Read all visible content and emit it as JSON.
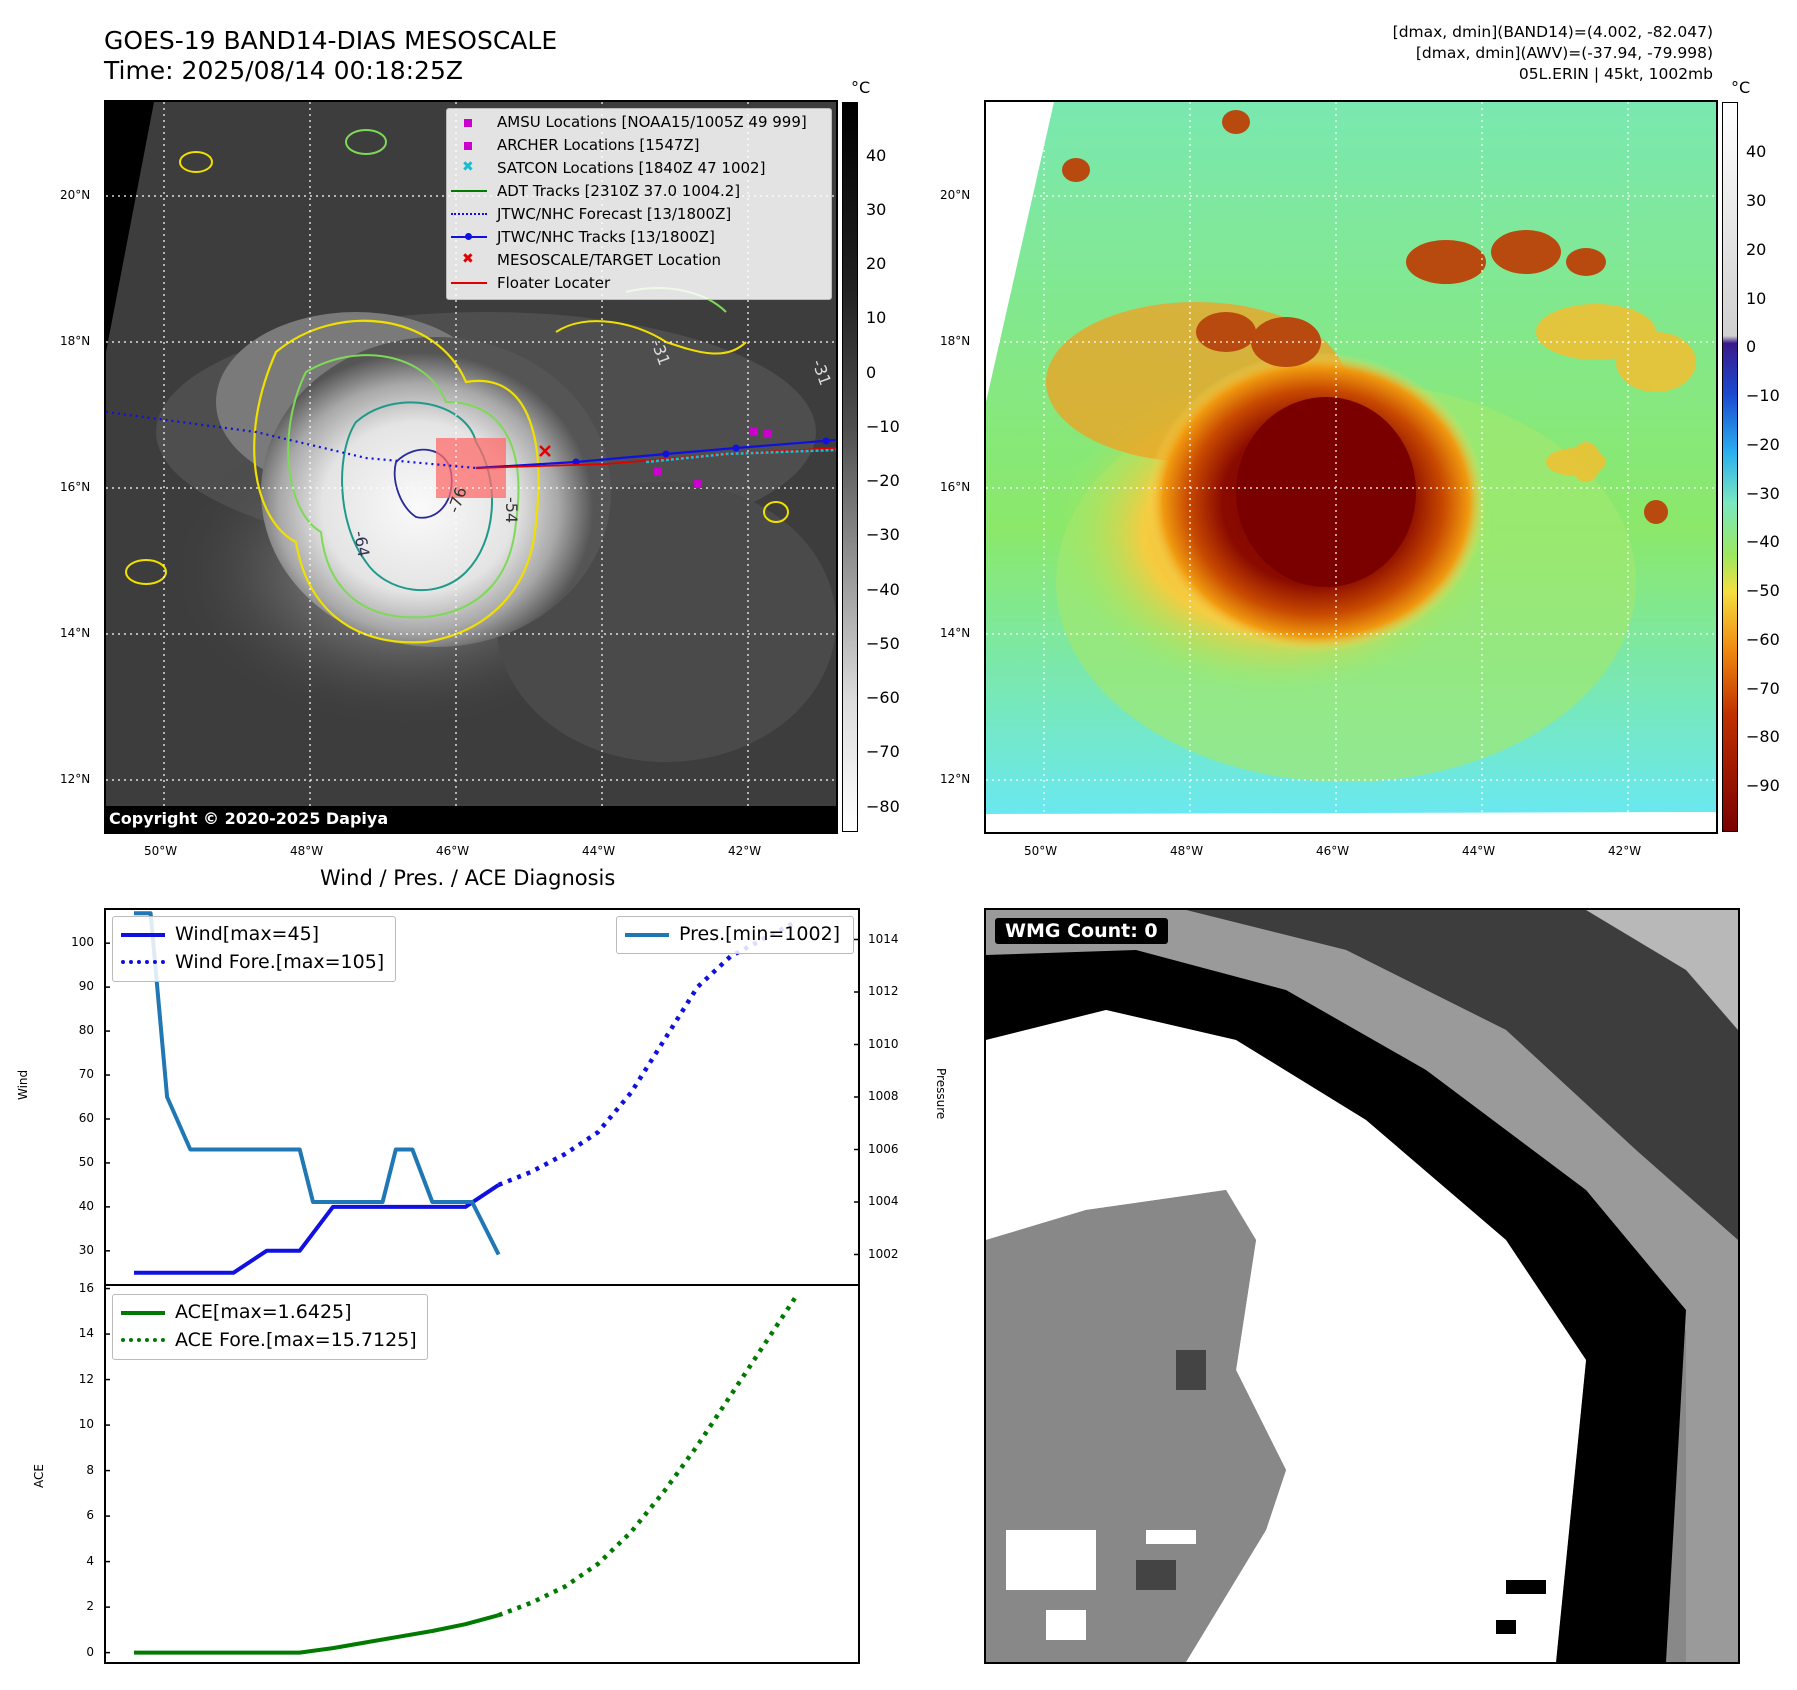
{
  "header": {
    "title_line1": "GOES-19 BAND14-DIAS MESOSCALE",
    "title_line2": "Time: 2025/08/14 00:18:25Z",
    "info_line1": "[dmax, dmin](BAND14)=(4.002, -82.047)",
    "info_line2": "[dmax, dmin](AWV)=(-37.94, -79.998)",
    "info_line3": "05L.ERIN | 45kt, 1002mb"
  },
  "colors": {
    "wind": "#1010e0",
    "pressure": "#1f77b4",
    "ace": "#007a00",
    "legend_purple": "#cc00cc",
    "legend_cyan": "#17becf",
    "floater_red": "#e00000"
  },
  "left_map": {
    "lat_labels": [
      "20°N",
      "18°N",
      "16°N",
      "14°N",
      "12°N"
    ],
    "lon_labels": [
      "50°W",
      "48°W",
      "46°W",
      "44°W",
      "42°W"
    ],
    "copyright": "Copyright © 2020-2025 Dapiya",
    "contour_labels": [
      "-64",
      "-76",
      "-54",
      "-31",
      "-31"
    ],
    "colorbar_unit": "°C",
    "colorbar_ticks": [
      "40",
      "30",
      "20",
      "10",
      "0",
      "−10",
      "−20",
      "−30",
      "−40",
      "−50",
      "−60",
      "−70",
      "−80"
    ],
    "legend": [
      {
        "label": "AMSU Locations [NOAA15/1005Z 49 999]",
        "icon": "square-marker"
      },
      {
        "label": "ARCHER Locations [1547Z]",
        "icon": "square-marker"
      },
      {
        "label": "SATCON Locations [1840Z 47 1002]",
        "icon": "x-marker"
      },
      {
        "label": "ADT Tracks [2310Z 37.0 1004.2]",
        "icon": "solid-line"
      },
      {
        "label": "JTWC/NHC Forecast [13/1800Z]",
        "icon": "dotted-line"
      },
      {
        "label": "JTWC/NHC Tracks [13/1800Z]",
        "icon": "line-dot"
      },
      {
        "label": "MESOSCALE/TARGET Location",
        "icon": "x-marker"
      },
      {
        "label": "Floater Locater",
        "icon": "solid-line"
      }
    ]
  },
  "right_map": {
    "lat_labels": [
      "20°N",
      "18°N",
      "16°N",
      "14°N",
      "12°N"
    ],
    "lon_labels": [
      "50°W",
      "48°W",
      "46°W",
      "44°W",
      "42°W"
    ],
    "colorbar_unit": "°C",
    "colorbar_ticks": [
      "40",
      "30",
      "20",
      "10",
      "0",
      "−10",
      "−20",
      "−30",
      "−40",
      "−50",
      "−60",
      "−70",
      "−80",
      "−90"
    ]
  },
  "wmg": {
    "label": "WMG Count: 0"
  },
  "chart_data": [
    {
      "type": "line",
      "title": "Wind / Pres. / ACE Diagnosis",
      "ylabel": "Wind",
      "y2label": "Pressure",
      "ylim": [
        22,
        108
      ],
      "y2lim": [
        1000.8,
        1015.2
      ],
      "yticks": [
        30,
        40,
        50,
        60,
        70,
        80,
        90,
        100
      ],
      "y2ticks": [
        1002,
        1004,
        1006,
        1008,
        1010,
        1012,
        1014
      ],
      "x_index_range": [
        0,
        21
      ],
      "series": [
        {
          "name": "Wind[max=45]",
          "axis": "left",
          "style": "solid",
          "color": "#1010e0",
          "x": [
            0,
            1,
            2,
            3,
            4,
            5,
            6,
            7,
            8,
            9,
            10,
            11
          ],
          "values": [
            25,
            25,
            25,
            25,
            30,
            30,
            40,
            40,
            40,
            40,
            40,
            45
          ]
        },
        {
          "name": "Wind Fore.[max=105]",
          "axis": "left",
          "style": "dotted",
          "color": "#1010e0",
          "x": [
            11,
            12,
            13,
            14,
            15,
            16,
            17,
            18,
            19,
            20
          ],
          "values": [
            45,
            48,
            52,
            57,
            66,
            78,
            90,
            97,
            101,
            105
          ]
        },
        {
          "name": "Pres.[min=1002]",
          "axis": "right",
          "style": "solid",
          "color": "#1f77b4",
          "x": [
            0,
            0.5,
            1,
            1.7,
            2.5,
            4,
            5,
            5.4,
            6.5,
            7.5,
            7.9,
            8.4,
            9,
            10.2,
            11
          ],
          "values": [
            1015,
            1015,
            1008,
            1006,
            1006,
            1006,
            1006,
            1004,
            1004,
            1004,
            1006,
            1006,
            1004,
            1004,
            1002
          ]
        }
      ],
      "legend": [
        "Wind[max=45]",
        "Wind Fore.[max=105]",
        "Pres.[min=1002]"
      ]
    },
    {
      "type": "line",
      "ylabel": "ACE",
      "ylim": [
        -0.5,
        16.2
      ],
      "yticks": [
        0,
        2,
        4,
        6,
        8,
        10,
        12,
        14,
        16
      ],
      "x_index_range": [
        0,
        21
      ],
      "series": [
        {
          "name": "ACE[max=1.6425]",
          "style": "solid",
          "color": "#007a00",
          "x": [
            0,
            1,
            2,
            3,
            4,
            5,
            6,
            7,
            8,
            9,
            10,
            11
          ],
          "values": [
            0,
            0,
            0,
            0,
            0,
            0,
            0.2,
            0.45,
            0.7,
            0.95,
            1.25,
            1.6425
          ]
        },
        {
          "name": "ACE Fore.[max=15.7125]",
          "style": "dotted",
          "color": "#007a00",
          "x": [
            11,
            12,
            13,
            14,
            15,
            16,
            17,
            18,
            19,
            20
          ],
          "values": [
            1.6425,
            2.2,
            2.9,
            3.9,
            5.3,
            7.1,
            9.1,
            11.3,
            13.5,
            15.7125
          ]
        }
      ],
      "legend": [
        "ACE[max=1.6425]",
        "ACE Fore.[max=15.7125]"
      ]
    }
  ]
}
